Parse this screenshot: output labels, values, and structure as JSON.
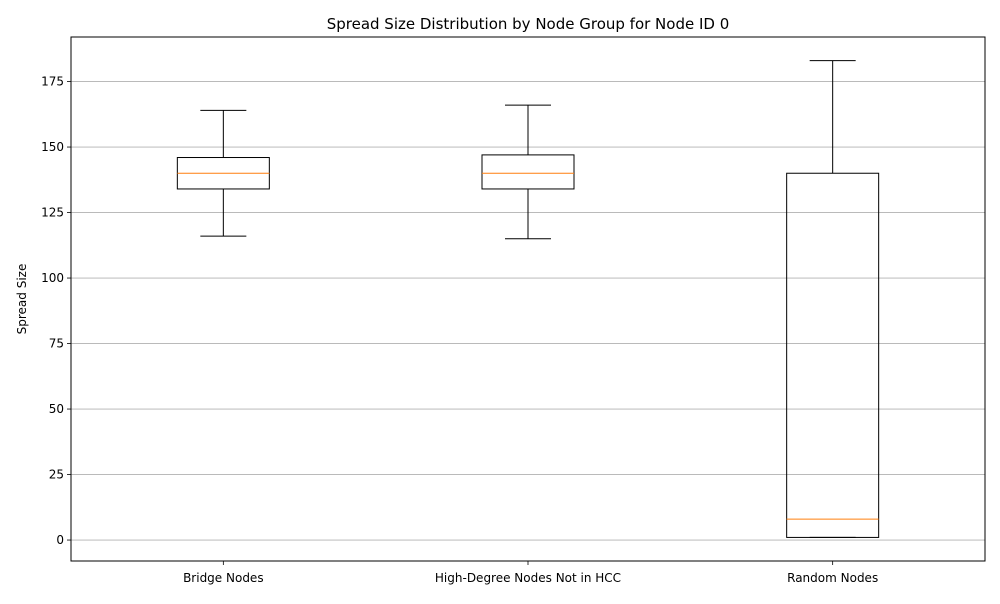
{
  "chart_data": {
    "type": "box",
    "title": "Spread Size Distribution by Node Group for Node ID 0",
    "xlabel": "",
    "ylabel": "Spread Size",
    "ylim": [
      -8,
      192
    ],
    "yticks": [
      0,
      25,
      50,
      75,
      100,
      125,
      150,
      175
    ],
    "grid": "horizontal",
    "categories": [
      "Bridge Nodes",
      "High-Degree Nodes Not in HCC",
      "Random Nodes"
    ],
    "boxes": [
      {
        "category": "Bridge Nodes",
        "whisker_low": 116,
        "q1": 134,
        "median": 140,
        "q3": 146,
        "whisker_high": 164
      },
      {
        "category": "High-Degree Nodes Not in HCC",
        "whisker_low": 115,
        "q1": 134,
        "median": 140,
        "q3": 147,
        "whisker_high": 166
      },
      {
        "category": "Random Nodes",
        "whisker_low": 1,
        "q1": 1,
        "median": 8,
        "q3": 140,
        "whisker_high": 183
      }
    ],
    "colors": {
      "box": "#000000",
      "median": "#ff7f0e",
      "grid": "#b0b0b0"
    }
  }
}
